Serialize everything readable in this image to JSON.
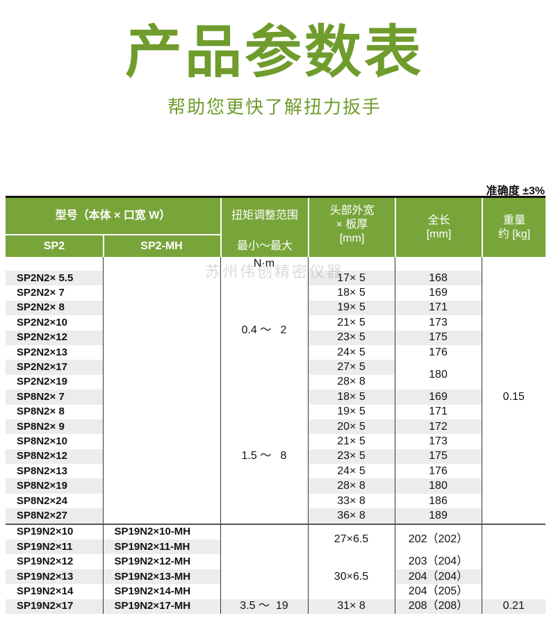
{
  "title": "产品参数表",
  "subtitle": "帮助您更快了解扭力扳手",
  "accuracy": "准确度 ±3%",
  "watermark": "苏州伟创精密仪器",
  "colors": {
    "accent": "#6f9c2c",
    "header_bg": "#78a53a",
    "row_shade": "#ececec"
  },
  "header": {
    "model": "型号（本体 × 口宽 W）",
    "sp2": "SP2",
    "sp2mh": "SP2-MH",
    "torque": "扭矩调整范围",
    "torque_sub": "最小～最大",
    "head": "头部外宽\n× 板厚\n[mm]",
    "length": "全长\n[mm]",
    "weight": "重量\n约 [kg]",
    "unit": "N·m"
  },
  "rows": [
    {
      "sp2": "SP2N2× 5.5",
      "mh": {
        "v": "",
        "span": 17
      },
      "torque": {
        "v": "0.4 ～   2",
        "span": 8
      },
      "head": {
        "v": "17× 5"
      },
      "length": {
        "v": "168"
      },
      "weight": {
        "v": "0.15",
        "span": 17
      }
    },
    {
      "sp2": "SP2N2× 7",
      "head": {
        "v": "18× 5"
      },
      "length": {
        "v": "169"
      }
    },
    {
      "sp2": "SP2N2× 8",
      "head": {
        "v": "19× 5"
      },
      "length": {
        "v": "171"
      }
    },
    {
      "sp2": "SP2N2×10",
      "head": {
        "v": "21× 5"
      },
      "length": {
        "v": "173"
      }
    },
    {
      "sp2": "SP2N2×12",
      "head": {
        "v": "23× 5"
      },
      "length": {
        "v": "175"
      }
    },
    {
      "sp2": "SP2N2×13",
      "head": {
        "v": "24× 5"
      },
      "length": {
        "v": "176"
      }
    },
    {
      "sp2": "SP2N2×17",
      "head": {
        "v": "27× 5"
      },
      "length": {
        "v": "180",
        "span": 2
      }
    },
    {
      "sp2": "SP2N2×19",
      "head": {
        "v": "28× 8"
      }
    },
    {
      "sp2": "SP8N2× 7",
      "torque": {
        "v": "1.5 ～   8",
        "span": 9
      },
      "head": {
        "v": "18× 5"
      },
      "length": {
        "v": "169"
      }
    },
    {
      "sp2": "SP8N2× 8",
      "head": {
        "v": "19× 5"
      },
      "length": {
        "v": "171"
      }
    },
    {
      "sp2": "SP8N2× 9",
      "head": {
        "v": "20× 5"
      },
      "length": {
        "v": "172"
      }
    },
    {
      "sp2": "SP8N2×10",
      "head": {
        "v": "21× 5"
      },
      "length": {
        "v": "173"
      }
    },
    {
      "sp2": "SP8N2×12",
      "head": {
        "v": "23× 5"
      },
      "length": {
        "v": "175"
      }
    },
    {
      "sp2": "SP8N2×13",
      "head": {
        "v": "24× 5"
      },
      "length": {
        "v": "176"
      }
    },
    {
      "sp2": "SP8N2×19",
      "head": {
        "v": "28× 8"
      },
      "length": {
        "v": "180"
      }
    },
    {
      "sp2": "SP8N2×24",
      "head": {
        "v": "33× 8"
      },
      "length": {
        "v": "186"
      }
    },
    {
      "sp2": "SP8N2×27",
      "head": {
        "v": "36× 8"
      },
      "length": {
        "v": "189"
      }
    },
    {
      "sp2": "SP19N2×10",
      "mh": {
        "v": "SP19N2×10-MH"
      },
      "torque": {
        "v": "",
        "span": 5
      },
      "head": {
        "v": "27×6.5",
        "span": 2
      },
      "length": {
        "v": "202（202）",
        "span": 2
      },
      "weight": {
        "v": "",
        "span": 5
      },
      "sep": true
    },
    {
      "sp2": "SP19N2×11",
      "mh": {
        "v": "SP19N2×11-MH"
      }
    },
    {
      "sp2": "SP19N2×12",
      "mh": {
        "v": "SP19N2×12-MH"
      },
      "head": {
        "v": "30×6.5",
        "span": 3
      },
      "length": {
        "v": "203（204）"
      }
    },
    {
      "sp2": "SP19N2×13",
      "mh": {
        "v": "SP19N2×13-MH"
      },
      "length": {
        "v": "204（204）"
      }
    },
    {
      "sp2": "SP19N2×14",
      "mh": {
        "v": "SP19N2×14-MH"
      },
      "length": {
        "v": "204（205）"
      }
    },
    {
      "sp2": "SP19N2×17",
      "mh": {
        "v": "SP19N2×17-MH"
      },
      "torque": {
        "v": "3.5 ～  19"
      },
      "head": {
        "v": "31× 8"
      },
      "length": {
        "v": "208（208）"
      },
      "weight": {
        "v": "0.21"
      }
    }
  ]
}
